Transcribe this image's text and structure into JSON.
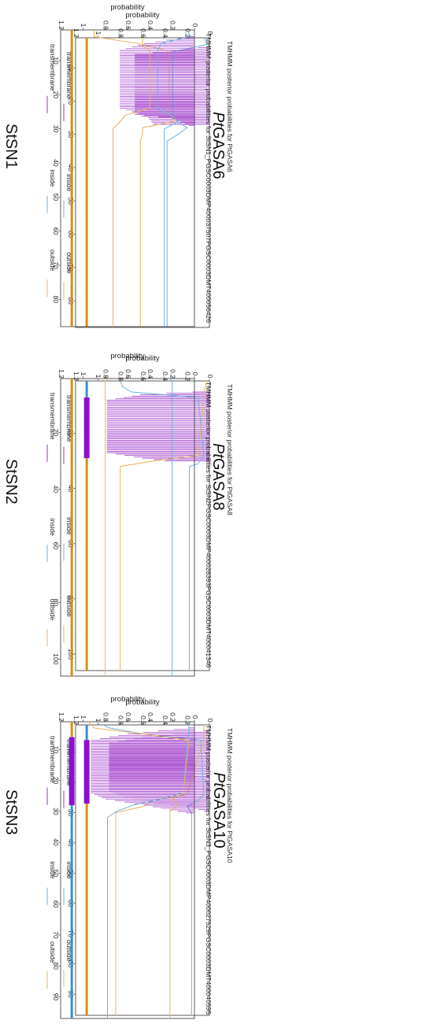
{
  "chart_data": [
    {
      "id": "pt6",
      "type": "line",
      "title": "TMHMM posterior probabilities for PtGASA6",
      "gene_label": "PtGASA6",
      "gene_prefix": "Pt",
      "gene_suffix": "GASA6",
      "xlabel": "",
      "ylabel": "probability",
      "xlim": [
        1,
        88
      ],
      "ylim": [
        0,
        1.2
      ],
      "x_ticks": [
        10,
        20,
        30,
        40,
        50,
        60,
        70,
        80
      ],
      "y_ticks": [
        0,
        0.2,
        0.4,
        0.6,
        0.8,
        1,
        1.2
      ],
      "topology_bar": [
        {
          "region": "outside",
          "start": 1,
          "end": 88
        }
      ],
      "tm_region": [
        4,
        27
      ],
      "tm_profile": [
        [
          1,
          0
        ],
        [
          3,
          0.02
        ],
        [
          4,
          0.1
        ],
        [
          5,
          0.35
        ],
        [
          6,
          0.67
        ],
        [
          24,
          0.67
        ],
        [
          25,
          0.55
        ],
        [
          27,
          0.5
        ],
        [
          28,
          0.05
        ],
        [
          29,
          0
        ]
      ],
      "inside_profile": [
        [
          1,
          0.05
        ],
        [
          3,
          0.02
        ],
        [
          5,
          0.3
        ],
        [
          6,
          0.33
        ],
        [
          24,
          0.33
        ],
        [
          26,
          0.3
        ],
        [
          28,
          0.2
        ],
        [
          30,
          0.28
        ],
        [
          32,
          0.38
        ],
        [
          88,
          0.38
        ]
      ],
      "outside_profile": [
        [
          1,
          0.6
        ],
        [
          3,
          0.6
        ],
        [
          5,
          0.37
        ],
        [
          6,
          0.36
        ],
        [
          24,
          0.36
        ],
        [
          26,
          0.3
        ],
        [
          28,
          0.6
        ],
        [
          30,
          0.6
        ],
        [
          32,
          0.62
        ],
        [
          88,
          0.62
        ]
      ]
    },
    {
      "id": "pt8",
      "type": "line",
      "title": "TMHMM posterior probabilities for PtGASA8",
      "gene_label": "PtGASA8",
      "gene_prefix": "Pt",
      "gene_suffix": "GASA8",
      "xlabel": "",
      "ylabel": "probability",
      "xlim": [
        1,
        106
      ],
      "ylim": [
        0,
        1.2
      ],
      "x_ticks": [
        20,
        40,
        60,
        80,
        100
      ],
      "y_ticks": [
        0,
        0.2,
        0.4,
        0.6,
        0.8,
        1,
        1.2
      ],
      "topology_bar": [
        {
          "region": "inside",
          "start": 1,
          "end": 7
        },
        {
          "region": "transmembrane",
          "start": 7,
          "end": 29
        },
        {
          "region": "outside",
          "start": 29,
          "end": 106
        }
      ],
      "tm_region": [
        5,
        30
      ],
      "tm_profile": [
        [
          1,
          0
        ],
        [
          3,
          0.02
        ],
        [
          5,
          0.15
        ],
        [
          6,
          0.62
        ],
        [
          8,
          0.92
        ],
        [
          27,
          0.92
        ],
        [
          29,
          0.6
        ],
        [
          31,
          0.2
        ],
        [
          33,
          0
        ]
      ],
      "inside_profile": [
        [
          1,
          0.8
        ],
        [
          3,
          0.78
        ],
        [
          5,
          0.7
        ],
        [
          7,
          0.1
        ],
        [
          28,
          0.05
        ],
        [
          31,
          0.1
        ],
        [
          32,
          0.18
        ],
        [
          106,
          0.18
        ]
      ],
      "outside_profile": [
        [
          1,
          0.02
        ],
        [
          5,
          0.05
        ],
        [
          7,
          0.05
        ],
        [
          28,
          0.1
        ],
        [
          30,
          0.5
        ],
        [
          32,
          0.8
        ],
        [
          106,
          0.8
        ]
      ]
    },
    {
      "id": "pt10",
      "type": "line",
      "title": "TMHMM posterior probabilities for PtGASA10",
      "gene_label": "PtGASA10",
      "gene_prefix": "Pt",
      "gene_suffix": "GASA10",
      "xlabel": "",
      "ylabel": "probability",
      "xlim": [
        1,
        97
      ],
      "ylim": [
        0,
        1.2
      ],
      "x_ticks": [
        10,
        20,
        30,
        40,
        50,
        60,
        70,
        80,
        90
      ],
      "y_ticks": [
        0,
        0.2,
        0.4,
        0.6,
        0.8,
        1,
        1.2
      ],
      "topology_bar": [
        {
          "region": "inside",
          "start": 1,
          "end": 6
        },
        {
          "region": "transmembrane",
          "start": 6,
          "end": 27
        },
        {
          "region": "outside",
          "start": 27,
          "end": 97
        }
      ],
      "tm_region": [
        3,
        30
      ],
      "tm_profile": [
        [
          1,
          0
        ],
        [
          3,
          0.05
        ],
        [
          5,
          0.6
        ],
        [
          7,
          0.9
        ],
        [
          23,
          0.9
        ],
        [
          25,
          0.75
        ],
        [
          27,
          0.5
        ],
        [
          28,
          0.2
        ],
        [
          30,
          0
        ]
      ],
      "inside_profile": [
        [
          1,
          0.95
        ],
        [
          2,
          0.9
        ],
        [
          4,
          0.6
        ],
        [
          6,
          0.08
        ],
        [
          24,
          0.05
        ],
        [
          26,
          0.1
        ],
        [
          28,
          0.2
        ],
        [
          30,
          0.16
        ],
        [
          97,
          0.16
        ]
      ],
      "outside_profile": [
        [
          1,
          0.05
        ],
        [
          4,
          0.05
        ],
        [
          6,
          0.05
        ],
        [
          24,
          0.2
        ],
        [
          26,
          0.5
        ],
        [
          28,
          0.6
        ],
        [
          30,
          0.84
        ],
        [
          97,
          0.84
        ]
      ]
    },
    {
      "id": "st1",
      "type": "line",
      "title": "TMHMM posterior probabilities for StSN1_PGSC0003DMP400037507PGSC0003DMT400056426",
      "gene_label": "StSN1",
      "gene_prefix": "",
      "gene_suffix": "StSN1",
      "xlabel": "",
      "ylabel": "probability",
      "xlim": [
        1,
        88
      ],
      "ylim": [
        0,
        1.2
      ],
      "x_ticks": [
        10,
        20,
        30,
        40,
        50,
        60,
        70,
        80
      ],
      "y_ticks": [
        0,
        0.2,
        0.4,
        0.6,
        0.8,
        1,
        1.2
      ],
      "topology_bar": [
        {
          "region": "outside",
          "start": 1,
          "end": 88
        }
      ],
      "tm_region": [
        3,
        29
      ],
      "tm_profile": [
        [
          1,
          0
        ],
        [
          3,
          0.05
        ],
        [
          5,
          0.45
        ],
        [
          7,
          0.67
        ],
        [
          24,
          0.67
        ],
        [
          26,
          0.45
        ],
        [
          27,
          0.2
        ],
        [
          29,
          0.05
        ],
        [
          30,
          0
        ]
      ],
      "inside_profile": [
        [
          1,
          0.05
        ],
        [
          3,
          0.05
        ],
        [
          5,
          0.3
        ],
        [
          7,
          0.33
        ],
        [
          24,
          0.33
        ],
        [
          26,
          0.2
        ],
        [
          28,
          0.15
        ],
        [
          30,
          0.27
        ],
        [
          32,
          0.27
        ],
        [
          88,
          0.27
        ]
      ],
      "outside_profile": [
        [
          1,
          0.9
        ],
        [
          3,
          0.9
        ],
        [
          5,
          0.5
        ],
        [
          7,
          0.4
        ],
        [
          24,
          0.4
        ],
        [
          26,
          0.62
        ],
        [
          28,
          0.67
        ],
        [
          30,
          0.73
        ],
        [
          88,
          0.73
        ]
      ]
    },
    {
      "id": "st2",
      "type": "line",
      "title": "TMHMM posterior probabilities for StSN2PGSC0003DMP400028393PGSC0003DMT400041346",
      "gene_label": "StSN2",
      "gene_prefix": "",
      "gene_suffix": "StSN2",
      "xlabel": "",
      "ylabel": "probability",
      "xlim": [
        1,
        106
      ],
      "ylim": [
        0,
        1.2
      ],
      "x_ticks": [
        20,
        40,
        60,
        80,
        100
      ],
      "y_ticks": [
        0,
        0.2,
        0.4,
        0.6,
        0.8,
        1,
        1.2
      ],
      "topology_bar": [
        {
          "region": "outside",
          "start": 1,
          "end": 106
        }
      ],
      "tm_region": null,
      "tm_profile": [
        [
          1,
          0
        ],
        [
          106,
          0
        ]
      ],
      "inside_profile": [
        [
          1,
          0.22
        ],
        [
          2,
          0.2
        ],
        [
          106,
          0.2
        ]
      ],
      "outside_profile": [
        [
          1,
          0.78
        ],
        [
          2,
          0.8
        ],
        [
          106,
          0.8
        ]
      ]
    },
    {
      "id": "st3",
      "type": "line",
      "title": "TMHMM posterior probabilities for StSN3_PGSC0003DMP400027529PGSC0003DMT400040595",
      "gene_label": "StSN3",
      "gene_prefix": "",
      "gene_suffix": "StSN3",
      "xlabel": "",
      "ylabel": "probability",
      "xlim": [
        1,
        97
      ],
      "ylim": [
        0,
        1.2
      ],
      "x_ticks": [
        10,
        20,
        30,
        40,
        50,
        60,
        70,
        80,
        90
      ],
      "y_ticks": [
        0,
        0.2,
        0.4,
        0.6,
        0.8,
        1,
        1.2
      ],
      "topology_bar": [
        {
          "region": "outside",
          "start": 1,
          "end": 6
        },
        {
          "region": "transmembrane",
          "start": 6,
          "end": 28
        },
        {
          "region": "inside",
          "start": 28,
          "end": 97
        }
      ],
      "tm_region": [
        3,
        31
      ],
      "tm_profile": [
        [
          1,
          0
        ],
        [
          3,
          0.05
        ],
        [
          5,
          0.6
        ],
        [
          7,
          0.93
        ],
        [
          24,
          0.93
        ],
        [
          26,
          0.8
        ],
        [
          28,
          0.45
        ],
        [
          30,
          0.15
        ],
        [
          31,
          0
        ]
      ],
      "inside_profile": [
        [
          1,
          0.05
        ],
        [
          4,
          0.05
        ],
        [
          6,
          0.06
        ],
        [
          24,
          0.1
        ],
        [
          26,
          0.3
        ],
        [
          28,
          0.55
        ],
        [
          30,
          0.7
        ],
        [
          32,
          0.78
        ],
        [
          97,
          0.78
        ]
      ],
      "outside_profile": [
        [
          1,
          0.95
        ],
        [
          3,
          0.9
        ],
        [
          5,
          0.45
        ],
        [
          7,
          0.05
        ],
        [
          24,
          0.1
        ],
        [
          26,
          0.2
        ],
        [
          28,
          0.15
        ],
        [
          30,
          0.22
        ],
        [
          97,
          0.22
        ]
      ]
    }
  ],
  "legend": {
    "transmembrane": "transmembrane",
    "inside": "inside",
    "outside": "outside"
  },
  "colors": {
    "transmembrane": "#9b30c8",
    "inside": "#6ab4dc",
    "outside": "#e6b45a",
    "bar_outside": "#d49015",
    "bar_inside": "#3a8fd0",
    "bar_tm": "#8a10d0"
  }
}
